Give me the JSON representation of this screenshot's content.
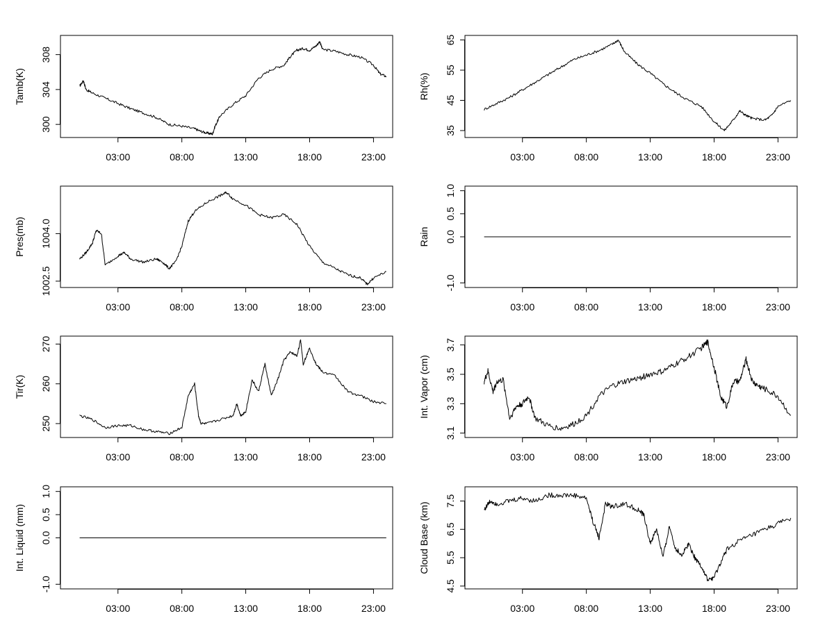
{
  "chart_data": [
    {
      "type": "line",
      "ylabel": "Tamb(K)",
      "xticks": [
        "03:00",
        "08:00",
        "13:00",
        "18:00",
        "23:00"
      ],
      "xlim": [
        -1.5,
        24.5
      ],
      "ylim": [
        298.5,
        310.2
      ],
      "yticks": [
        300,
        304,
        308
      ],
      "yticklabels": [
        "300",
        "304",
        "308"
      ],
      "x": [
        0,
        0.3,
        0.5,
        1.0,
        2,
        3,
        4,
        5,
        6,
        7,
        8,
        9,
        9.5,
        10.0,
        10.4,
        10.6,
        11,
        12,
        13,
        14,
        15,
        16,
        16.5,
        17,
        17.5,
        18,
        18.5,
        18.8,
        19,
        20,
        21,
        22,
        23,
        23.5,
        24
      ],
      "values": [
        304.4,
        305.0,
        304.0,
        303.6,
        303.0,
        302.4,
        301.8,
        301.3,
        300.8,
        300.0,
        299.8,
        299.5,
        299.2,
        299.0,
        298.9,
        299.8,
        301.0,
        302.3,
        303.3,
        305.3,
        306.3,
        306.8,
        307.8,
        308.5,
        308.7,
        308.5,
        309.0,
        309.5,
        308.6,
        308.4,
        308.0,
        307.7,
        306.8,
        305.8,
        305.5
      ]
    },
    {
      "type": "line",
      "ylabel": "Rh(%)",
      "xticks": [
        "03:00",
        "08:00",
        "13:00",
        "18:00",
        "23:00"
      ],
      "xlim": [
        -1.5,
        24.5
      ],
      "ylim": [
        32.7,
        66.5
      ],
      "yticks": [
        35,
        45,
        55,
        65
      ],
      "yticklabels": [
        "35",
        "45",
        "55",
        "65"
      ],
      "x": [
        0,
        1,
        2,
        3,
        4,
        5,
        6,
        7,
        8,
        9,
        10,
        10.5,
        11,
        12,
        13,
        14,
        15,
        16,
        17,
        18,
        18.8,
        19.5,
        20,
        20.5,
        21,
        22,
        22.5,
        23,
        24
      ],
      "values": [
        42,
        44,
        46,
        48.5,
        51,
        53.5,
        56,
        58.5,
        60,
        61.5,
        63.5,
        65,
        61,
        57,
        54,
        50.5,
        47.5,
        45,
        43,
        38,
        35,
        38.5,
        41.5,
        40,
        39,
        38.5,
        40,
        43,
        45
      ]
    },
    {
      "type": "line",
      "ylabel": "Pres(mb)",
      "xticks": [
        "03:00",
        "08:00",
        "13:00",
        "18:00",
        "23:00"
      ],
      "xlim": [
        -1.5,
        24.5
      ],
      "ylim": [
        1002.3,
        1005.5
      ],
      "yticks": [
        1002.5,
        1004.0
      ],
      "yticklabels": [
        "1002.5",
        "1004.0"
      ],
      "x": [
        0,
        0.5,
        1,
        1.3,
        1.7,
        2,
        3,
        3.5,
        4,
        5,
        6,
        6.5,
        7,
        7.5,
        8,
        8.5,
        9,
        10,
        11,
        11.5,
        12,
        13,
        14,
        15,
        16,
        17,
        18,
        19,
        20,
        21,
        22,
        22.5,
        23,
        24
      ],
      "values": [
        1003.2,
        1003.4,
        1003.7,
        1004.1,
        1004.0,
        1003.0,
        1003.3,
        1003.4,
        1003.2,
        1003.1,
        1003.2,
        1003.1,
        1002.9,
        1003.1,
        1003.6,
        1004.4,
        1004.7,
        1005.0,
        1005.2,
        1005.3,
        1005.1,
        1004.9,
        1004.6,
        1004.5,
        1004.6,
        1004.3,
        1003.6,
        1003.1,
        1002.9,
        1002.7,
        1002.6,
        1002.4,
        1002.6,
        1002.8
      ]
    },
    {
      "type": "line",
      "ylabel": "Rain",
      "xticks": [
        "03:00",
        "08:00",
        "13:00",
        "18:00",
        "23:00"
      ],
      "xlim": [
        -1.5,
        24.5
      ],
      "ylim": [
        -1.1,
        1.1
      ],
      "yticks": [
        -1.0,
        0.0,
        0.5,
        1.0
      ],
      "yticklabels": [
        "-1.0",
        "0.0",
        "0.5",
        "1.0"
      ],
      "x": [
        0,
        24
      ],
      "values": [
        0,
        0
      ]
    },
    {
      "type": "line",
      "ylabel": "Tir(K)",
      "xticks": [
        "03:00",
        "08:00",
        "13:00",
        "18:00",
        "23:00"
      ],
      "xlim": [
        -1.5,
        24.5
      ],
      "ylim": [
        246.5,
        272
      ],
      "yticks": [
        250,
        260,
        270
      ],
      "yticklabels": [
        "250",
        "260",
        "270"
      ],
      "x": [
        0,
        1,
        2,
        3,
        4,
        5,
        6,
        7,
        8,
        8.5,
        9,
        9.3,
        9.5,
        10,
        11,
        12,
        12.3,
        12.6,
        13,
        13.5,
        14,
        14.5,
        15,
        15.5,
        16,
        16.5,
        17,
        17.3,
        17.5,
        18,
        18.5,
        19,
        20,
        21,
        22,
        23,
        24
      ],
      "values": [
        252,
        251,
        249,
        249.5,
        249.5,
        248.5,
        248,
        247.5,
        249,
        257,
        260,
        252,
        250,
        250,
        251,
        252,
        255,
        252,
        253,
        261,
        258,
        265,
        257,
        261,
        266,
        268,
        267,
        271,
        265,
        269,
        265,
        263,
        262,
        258,
        257,
        255.5,
        255
      ]
    },
    {
      "type": "line",
      "ylabel": "Int. Vapor (cm)",
      "xticks": [
        "03:00",
        "08:00",
        "13:00",
        "18:00",
        "23:00"
      ],
      "xlim": [
        -1.5,
        24.5
      ],
      "ylim": [
        3.07,
        3.76
      ],
      "yticks": [
        3.1,
        3.3,
        3.5,
        3.7
      ],
      "yticklabels": [
        "3.1",
        "3.3",
        "3.5",
        "3.7"
      ],
      "x": [
        0,
        0.3,
        0.7,
        1,
        1.5,
        2,
        2.5,
        3,
        3.5,
        4,
        5,
        6,
        7,
        8,
        9,
        10,
        11,
        12,
        13,
        14,
        15,
        16,
        17,
        17.5,
        18,
        18.5,
        19,
        19.5,
        20,
        20.5,
        21,
        21.5,
        22,
        23,
        24
      ],
      "values": [
        3.45,
        3.52,
        3.38,
        3.45,
        3.46,
        3.2,
        3.28,
        3.3,
        3.35,
        3.2,
        3.15,
        3.13,
        3.16,
        3.22,
        3.35,
        3.42,
        3.45,
        3.47,
        3.5,
        3.52,
        3.57,
        3.62,
        3.68,
        3.72,
        3.55,
        3.35,
        3.28,
        3.45,
        3.45,
        3.6,
        3.45,
        3.42,
        3.4,
        3.35,
        3.22
      ]
    },
    {
      "type": "line",
      "ylabel": "Int. Liquid (mm)",
      "xticks": [
        "03:00",
        "08:00",
        "13:00",
        "18:00",
        "23:00"
      ],
      "xlim": [
        -1.5,
        24.5
      ],
      "ylim": [
        -1.1,
        1.1
      ],
      "yticks": [
        -1.0,
        0.0,
        0.5,
        1.0
      ],
      "yticklabels": [
        "-1.0",
        "0.0",
        "0.5",
        "1.0"
      ],
      "x": [
        0,
        24
      ],
      "values": [
        0,
        0
      ]
    },
    {
      "type": "line",
      "ylabel": "Cloud Base (km)",
      "xticks": [
        "03:00",
        "08:00",
        "13:00",
        "18:00",
        "23:00"
      ],
      "xlim": [
        -1.5,
        24.5
      ],
      "ylim": [
        4.4,
        8.0
      ],
      "yticks": [
        4.5,
        5.5,
        6.5,
        7.5
      ],
      "yticklabels": [
        "4.5",
        "5.5",
        "6.5",
        "7.5"
      ],
      "x": [
        0,
        0.5,
        1,
        2,
        3,
        4,
        5,
        6,
        7,
        8,
        8.5,
        9,
        9.5,
        10,
        11,
        12,
        12.5,
        13,
        13.5,
        14,
        14.5,
        15,
        15.5,
        16,
        16.5,
        17,
        17.5,
        18,
        18.5,
        19,
        20,
        21,
        22,
        23,
        24
      ],
      "values": [
        7.2,
        7.5,
        7.4,
        7.5,
        7.6,
        7.5,
        7.7,
        7.7,
        7.7,
        7.6,
        6.8,
        6.2,
        7.4,
        7.3,
        7.4,
        7.2,
        7.0,
        6.0,
        6.5,
        5.5,
        6.6,
        5.8,
        5.6,
        6.0,
        5.5,
        5.2,
        4.7,
        4.8,
        5.3,
        5.8,
        6.1,
        6.3,
        6.5,
        6.7,
        6.9
      ]
    }
  ]
}
